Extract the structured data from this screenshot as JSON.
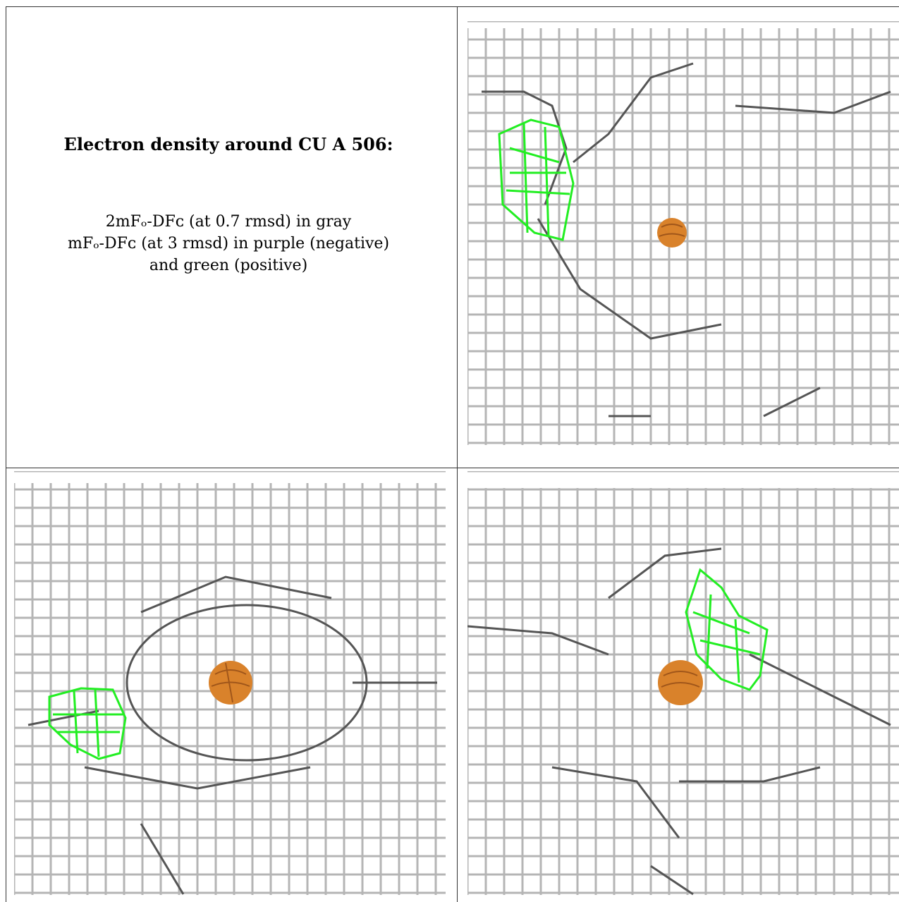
{
  "caption": {
    "title": "Electron density around CU A 506:",
    "line1": "2mFₒ-DFᴄ (at 0.7 rmsd) in gray",
    "line2": "mFₒ-DFᴄ (at 3 rmsd) in purple (negative)",
    "line3": "and green (positive)"
  },
  "colors": {
    "map_2fofc": "#9a9a9a",
    "map_positive": "#22ee22",
    "copper_atom": "#d9822b"
  },
  "panels": [
    {
      "name": "view-1",
      "atom": "CU"
    },
    {
      "name": "view-2",
      "atom": "CU"
    },
    {
      "name": "view-3",
      "atom": "CU"
    }
  ]
}
